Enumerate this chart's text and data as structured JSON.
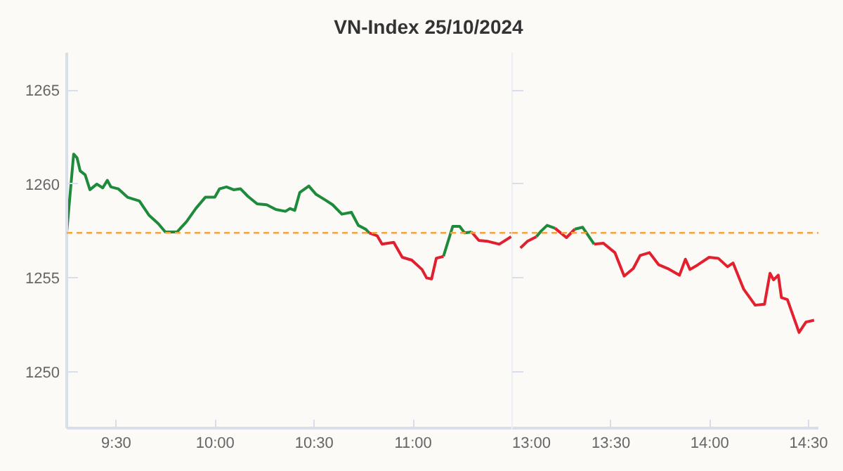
{
  "chart_data": [
    {
      "type": "line",
      "title": "VN-Index 25/10/2024",
      "x": [
        9.25,
        9.285,
        9.302,
        9.318,
        9.343,
        9.367,
        9.402,
        9.432,
        9.455,
        9.473,
        9.51,
        9.557,
        9.617,
        9.665,
        9.712,
        9.748,
        9.807,
        9.855,
        9.902,
        9.95,
        9.998,
        10.022,
        10.057,
        10.093,
        10.128,
        10.165,
        10.212,
        10.26,
        10.307,
        10.355,
        10.378,
        10.402,
        10.427,
        10.473,
        10.51,
        10.557,
        10.593,
        10.64,
        10.688,
        10.723,
        10.76,
        10.778,
        10.818,
        10.843,
        10.902,
        10.945,
        10.993,
        11.045,
        11.068,
        11.093,
        11.117,
        11.153,
        11.2,
        11.235,
        11.26,
        11.295,
        11.332,
        11.378,
        11.435,
        11.495
      ],
      "series": [
        {
          "color": "#1e8a3c",
          "values": [
            1257.45,
            1261.6,
            1261.4,
            1260.7,
            1260.5,
            1259.7,
            1260.0,
            1259.8,
            1260.2,
            1259.85,
            1259.75,
            1259.3,
            1259.1,
            1258.35,
            1257.9,
            1257.45,
            1257.45,
            1258.0,
            1258.7,
            1259.3,
            1259.3,
            1259.75,
            1259.85,
            1259.7,
            1259.75,
            1259.35,
            1258.95,
            1258.9,
            1258.65,
            1258.55,
            1258.7,
            1258.6,
            1259.55,
            1259.9,
            1259.45,
            1259.15,
            1258.9,
            1258.4,
            1258.5,
            1257.8,
            1257.6,
            1257.4,
            null,
            null,
            null,
            null,
            null,
            null,
            null,
            null,
            null,
            1256.15,
            1257.75,
            1257.75,
            1257.4,
            1257.45,
            null,
            null,
            null,
            null
          ]
        },
        {
          "color": "#e0202e",
          "values": [
            null,
            null,
            null,
            null,
            null,
            null,
            null,
            null,
            null,
            null,
            null,
            null,
            null,
            null,
            null,
            null,
            null,
            null,
            null,
            null,
            null,
            null,
            null,
            null,
            null,
            null,
            null,
            null,
            null,
            null,
            null,
            null,
            null,
            null,
            null,
            null,
            null,
            null,
            null,
            null,
            null,
            1257.4,
            1257.25,
            1256.8,
            1256.9,
            1256.1,
            1255.95,
            1255.45,
            1255.0,
            1254.95,
            1256.05,
            1256.15,
            null,
            null,
            null,
            1257.45,
            1257.0,
            1256.95,
            1256.8,
            1257.2
          ]
        }
      ],
      "xlim": [
        9.25,
        11.5
      ],
      "xticks": [
        {
          "value": 9.5,
          "label": "9:30"
        },
        {
          "value": 10,
          "label": "10:00"
        },
        {
          "value": 10.5,
          "label": "10:30"
        },
        {
          "value": 11,
          "label": "11:00"
        }
      ],
      "ylim": [
        1247,
        1267
      ],
      "yticks": [
        1250,
        1255,
        1260,
        1265
      ],
      "ref_lines": [
        {
          "axis": "y",
          "value": 1257.4,
          "color": "#f5a33c",
          "line_style": "dashed"
        }
      ],
      "grid": false,
      "marker": "none",
      "line_style": "solid"
    },
    {
      "type": "line",
      "series": [
        {
          "color": "#e1202e",
          "x": [
            13.042,
            13.077,
            13.123
          ],
          "values": [
            1256.6,
            1256.95,
            1257.2
          ]
        },
        {
          "color": "#1e8a3c",
          "x": [
            13.123,
            13.147,
            13.177,
            13.217
          ],
          "values": [
            1257.2,
            1257.5,
            1257.8,
            1257.65
          ]
        },
        {
          "color": "#e2202e",
          "x": [
            13.217,
            13.275,
            13.317
          ],
          "values": [
            1257.65,
            1257.15,
            1257.6
          ]
        },
        {
          "color": "#1e8a3c",
          "x": [
            13.317,
            13.357,
            13.415
          ],
          "values": [
            1257.6,
            1257.7,
            1256.8
          ]
        },
        {
          "color": "#e3202e",
          "x": [
            13.415,
            13.462,
            13.52,
            13.567,
            13.613,
            13.648,
            13.695,
            13.742,
            13.788,
            13.847,
            13.877,
            13.9,
            13.94,
            13.997,
            14.043,
            14.09,
            14.118,
            14.172,
            14.23,
            14.277,
            14.305,
            14.323,
            14.347,
            14.363,
            14.393,
            14.452,
            14.487,
            14.528
          ],
          "values": [
            1256.8,
            1256.85,
            1256.35,
            1255.1,
            1255.5,
            1256.2,
            1256.35,
            1255.7,
            1255.5,
            1255.15,
            1256.0,
            1255.45,
            1255.7,
            1256.1,
            1256.05,
            1255.6,
            1255.8,
            1254.4,
            1253.55,
            1253.6,
            1255.25,
            1254.9,
            1255.15,
            1253.95,
            1253.85,
            1252.1,
            1252.65,
            1252.75
          ]
        }
      ],
      "xlim": [
        13.0,
        14.55
      ],
      "xticks": [
        {
          "value": 13,
          "label": "13:00"
        },
        {
          "value": 13.5,
          "label": "13:30"
        },
        {
          "value": 14,
          "label": "14:00"
        },
        {
          "value": 14.5,
          "label": "14:30"
        }
      ],
      "ylim": [
        1247,
        1267
      ],
      "yticks": [
        1250,
        1255,
        1260,
        1265
      ],
      "tick_labels": "x",
      "grid": false,
      "ref_lines": [
        {
          "axis": "y",
          "value": 1257.4,
          "color": "#f5a33c",
          "line_style": "dashed"
        }
      ],
      "marker": "none",
      "line_style": "solid"
    }
  ]
}
